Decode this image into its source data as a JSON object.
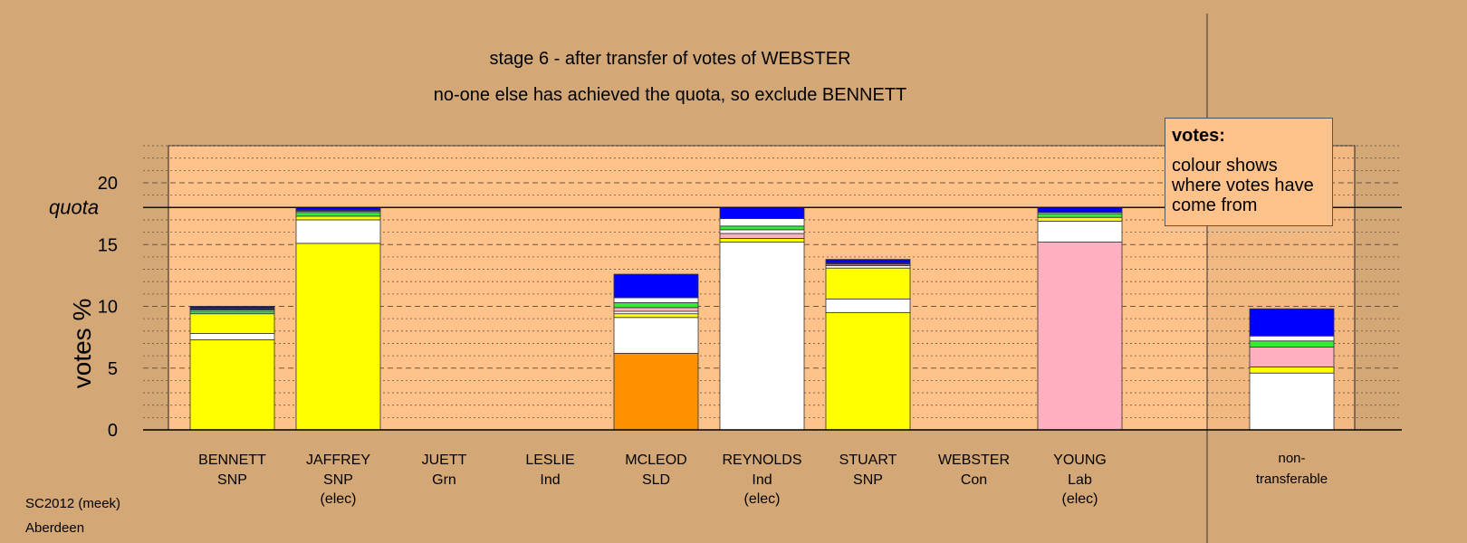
{
  "title": "stage 6 - after transfer of votes of WEBSTER",
  "subtitle": "no-one else has achieved the quota, so exclude BENNETT",
  "legend": {
    "title": "votes:",
    "text": "colour shows where votes have come from"
  },
  "footer": {
    "line1": "SC2012 (meek)",
    "line2": "Aberdeen"
  },
  "colors": {
    "SNP": "#ffff00",
    "Ind": "#ffffff",
    "SLD": "#ff9000",
    "Lab": "#ffb0c0",
    "Con": "#0000ff",
    "Grn": "#33ee33",
    "Other": "#203060",
    "background": "#d4a876",
    "plot_area": "#ffc28a"
  },
  "chart_data": {
    "type": "bar",
    "stacked": true,
    "ylabel": "votes %",
    "ylim": [
      0,
      23
    ],
    "yticks": [
      0,
      5,
      10,
      15,
      20
    ],
    "quota": 18,
    "quota_label": "quota",
    "grid": true,
    "candidates": [
      {
        "name": "BENNETT",
        "party": "SNP",
        "elected": "",
        "segments": [
          {
            "c": "SNP",
            "v": 7.3
          },
          {
            "c": "Ind",
            "v": 0.5
          },
          {
            "c": "SNP",
            "v": 1.6
          },
          {
            "c": "Grn",
            "v": 0.2
          },
          {
            "c": "Ind",
            "v": 0.1
          },
          {
            "c": "Other",
            "v": 0.15
          },
          {
            "c": "Con",
            "v": 0.15
          }
        ]
      },
      {
        "name": "JAFFREY",
        "party": "SNP",
        "elected": "(elec)",
        "segments": [
          {
            "c": "SNP",
            "v": 15.1
          },
          {
            "c": "Ind",
            "v": 1.9
          },
          {
            "c": "SNP",
            "v": 0.3
          },
          {
            "c": "Grn",
            "v": 0.3
          },
          {
            "c": "Ind",
            "v": 0.1
          },
          {
            "c": "Other",
            "v": 0.1
          },
          {
            "c": "Con",
            "v": 0.2
          }
        ]
      },
      {
        "name": "JUETT",
        "party": "Grn",
        "elected": "",
        "segments": []
      },
      {
        "name": "LESLIE",
        "party": "Ind",
        "elected": "",
        "segments": []
      },
      {
        "name": "MCLEOD",
        "party": "SLD",
        "elected": "",
        "segments": [
          {
            "c": "SLD",
            "v": 6.2
          },
          {
            "c": "Ind",
            "v": 2.9
          },
          {
            "c": "SNP",
            "v": 0.3
          },
          {
            "c": "Ind",
            "v": 0.2
          },
          {
            "c": "Lab",
            "v": 0.3
          },
          {
            "c": "Grn",
            "v": 0.4
          },
          {
            "c": "Ind",
            "v": 0.4
          },
          {
            "c": "Con",
            "v": 1.9
          }
        ]
      },
      {
        "name": "REYNOLDS",
        "party": "Ind",
        "elected": "(elec)",
        "segments": [
          {
            "c": "Ind",
            "v": 15.2
          },
          {
            "c": "SNP",
            "v": 0.3
          },
          {
            "c": "Lab",
            "v": 0.4
          },
          {
            "c": "Ind",
            "v": 0.3
          },
          {
            "c": "Grn",
            "v": 0.3
          },
          {
            "c": "Ind",
            "v": 0.6
          },
          {
            "c": "Con",
            "v": 0.9
          }
        ]
      },
      {
        "name": "STUART",
        "party": "SNP",
        "elected": "",
        "segments": [
          {
            "c": "SNP",
            "v": 9.5
          },
          {
            "c": "Ind",
            "v": 1.1
          },
          {
            "c": "SNP",
            "v": 2.5
          },
          {
            "c": "Ind",
            "v": 0.2
          },
          {
            "c": "Lab",
            "v": 0.1
          },
          {
            "c": "Other",
            "v": 0.1
          },
          {
            "c": "Con",
            "v": 0.3
          }
        ]
      },
      {
        "name": "WEBSTER",
        "party": "Con",
        "elected": "",
        "segments": []
      },
      {
        "name": "YOUNG",
        "party": "Lab",
        "elected": "(elec)",
        "segments": [
          {
            "c": "Lab",
            "v": 15.2
          },
          {
            "c": "Ind",
            "v": 1.7
          },
          {
            "c": "SNP",
            "v": 0.3
          },
          {
            "c": "Grn",
            "v": 0.3
          },
          {
            "c": "Ind",
            "v": 0.1
          },
          {
            "c": "Con",
            "v": 0.4
          }
        ]
      }
    ],
    "nontransferable": {
      "label_line1": "non-",
      "label_line2": "transferable",
      "segments": [
        {
          "c": "Ind",
          "v": 4.6
        },
        {
          "c": "SNP",
          "v": 0.5
        },
        {
          "c": "Lab",
          "v": 1.6
        },
        {
          "c": "Grn",
          "v": 0.5
        },
        {
          "c": "Ind",
          "v": 0.4
        },
        {
          "c": "Con",
          "v": 2.2
        }
      ]
    }
  }
}
